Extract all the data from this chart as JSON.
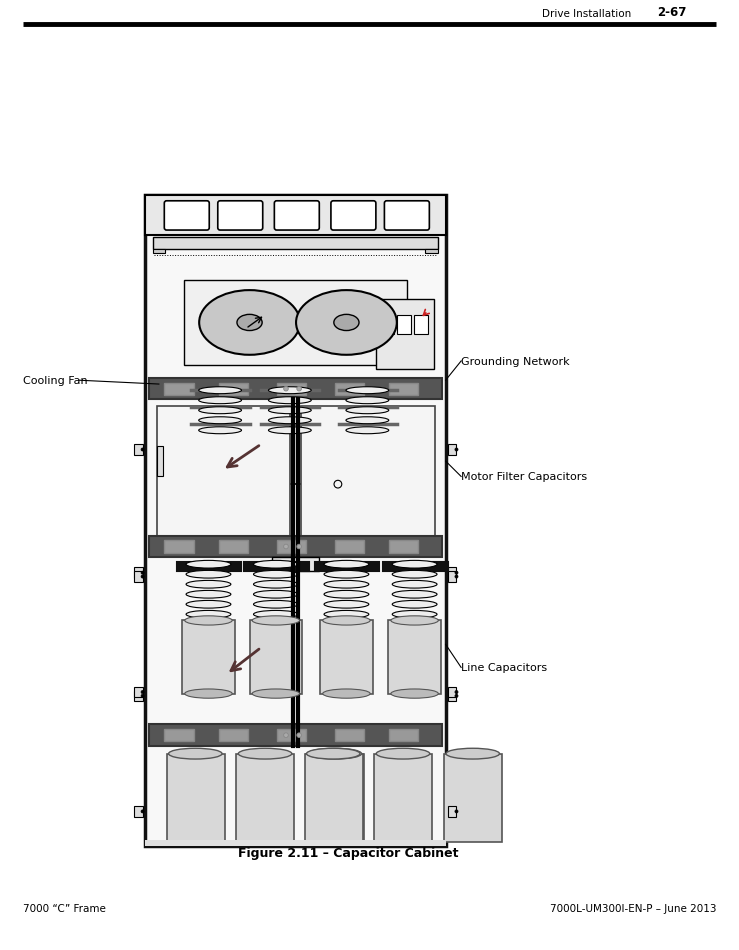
{
  "page_title_right": "Drive Installation",
  "page_number": "2-67",
  "footer_left": "7000 “C” Frame",
  "footer_right": "7000L-UM300I-EN-P – June 2013",
  "figure_caption": "Figure 2.11 – Capacitor Cabinet",
  "labels": {
    "cooling_fan": "Cooling Fan",
    "grounding_network": "Grounding Network",
    "motor_filter_capacitors": "Motor Filter Capacitors",
    "line_capacitors": "Line Capacitors"
  },
  "bg_color": "#ffffff",
  "line_color": "#000000"
}
